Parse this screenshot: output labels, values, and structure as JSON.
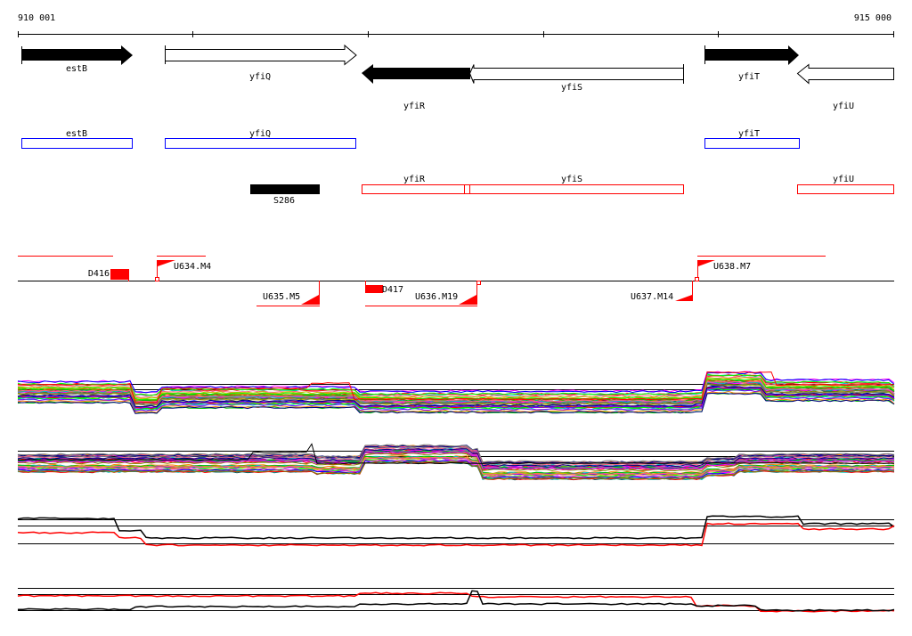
{
  "ruler": {
    "start_label": "910 001",
    "end_label": "915 000"
  },
  "genes": [
    {
      "name": "estB",
      "strand": "+",
      "style": "filled"
    },
    {
      "name": "yfiQ",
      "strand": "+",
      "style": "open"
    },
    {
      "name": "yfiR",
      "strand": "-",
      "style": "filled"
    },
    {
      "name": "yfiS",
      "strand": "-",
      "style": "open"
    },
    {
      "name": "yfiT",
      "strand": "+",
      "style": "filled"
    },
    {
      "name": "yfiU",
      "strand": "-",
      "style": "open"
    }
  ],
  "operons_blue": [
    "estB",
    "yfiQ",
    "yfiT"
  ],
  "operons_red": [
    "yfiR",
    "yfiS",
    "yfiU"
  ],
  "feature_black": "S286",
  "transcripts": {
    "D416": "D416",
    "U634": "U634.M4",
    "U635": "U635.M5",
    "D417": "D417",
    "U636": "U636.M19",
    "U637": "U637.M14",
    "U638": "U638.M7"
  },
  "colors": {
    "forward_box": "#0000ff",
    "reverse_box": "#ff0000",
    "transcript": "#ff0000"
  }
}
